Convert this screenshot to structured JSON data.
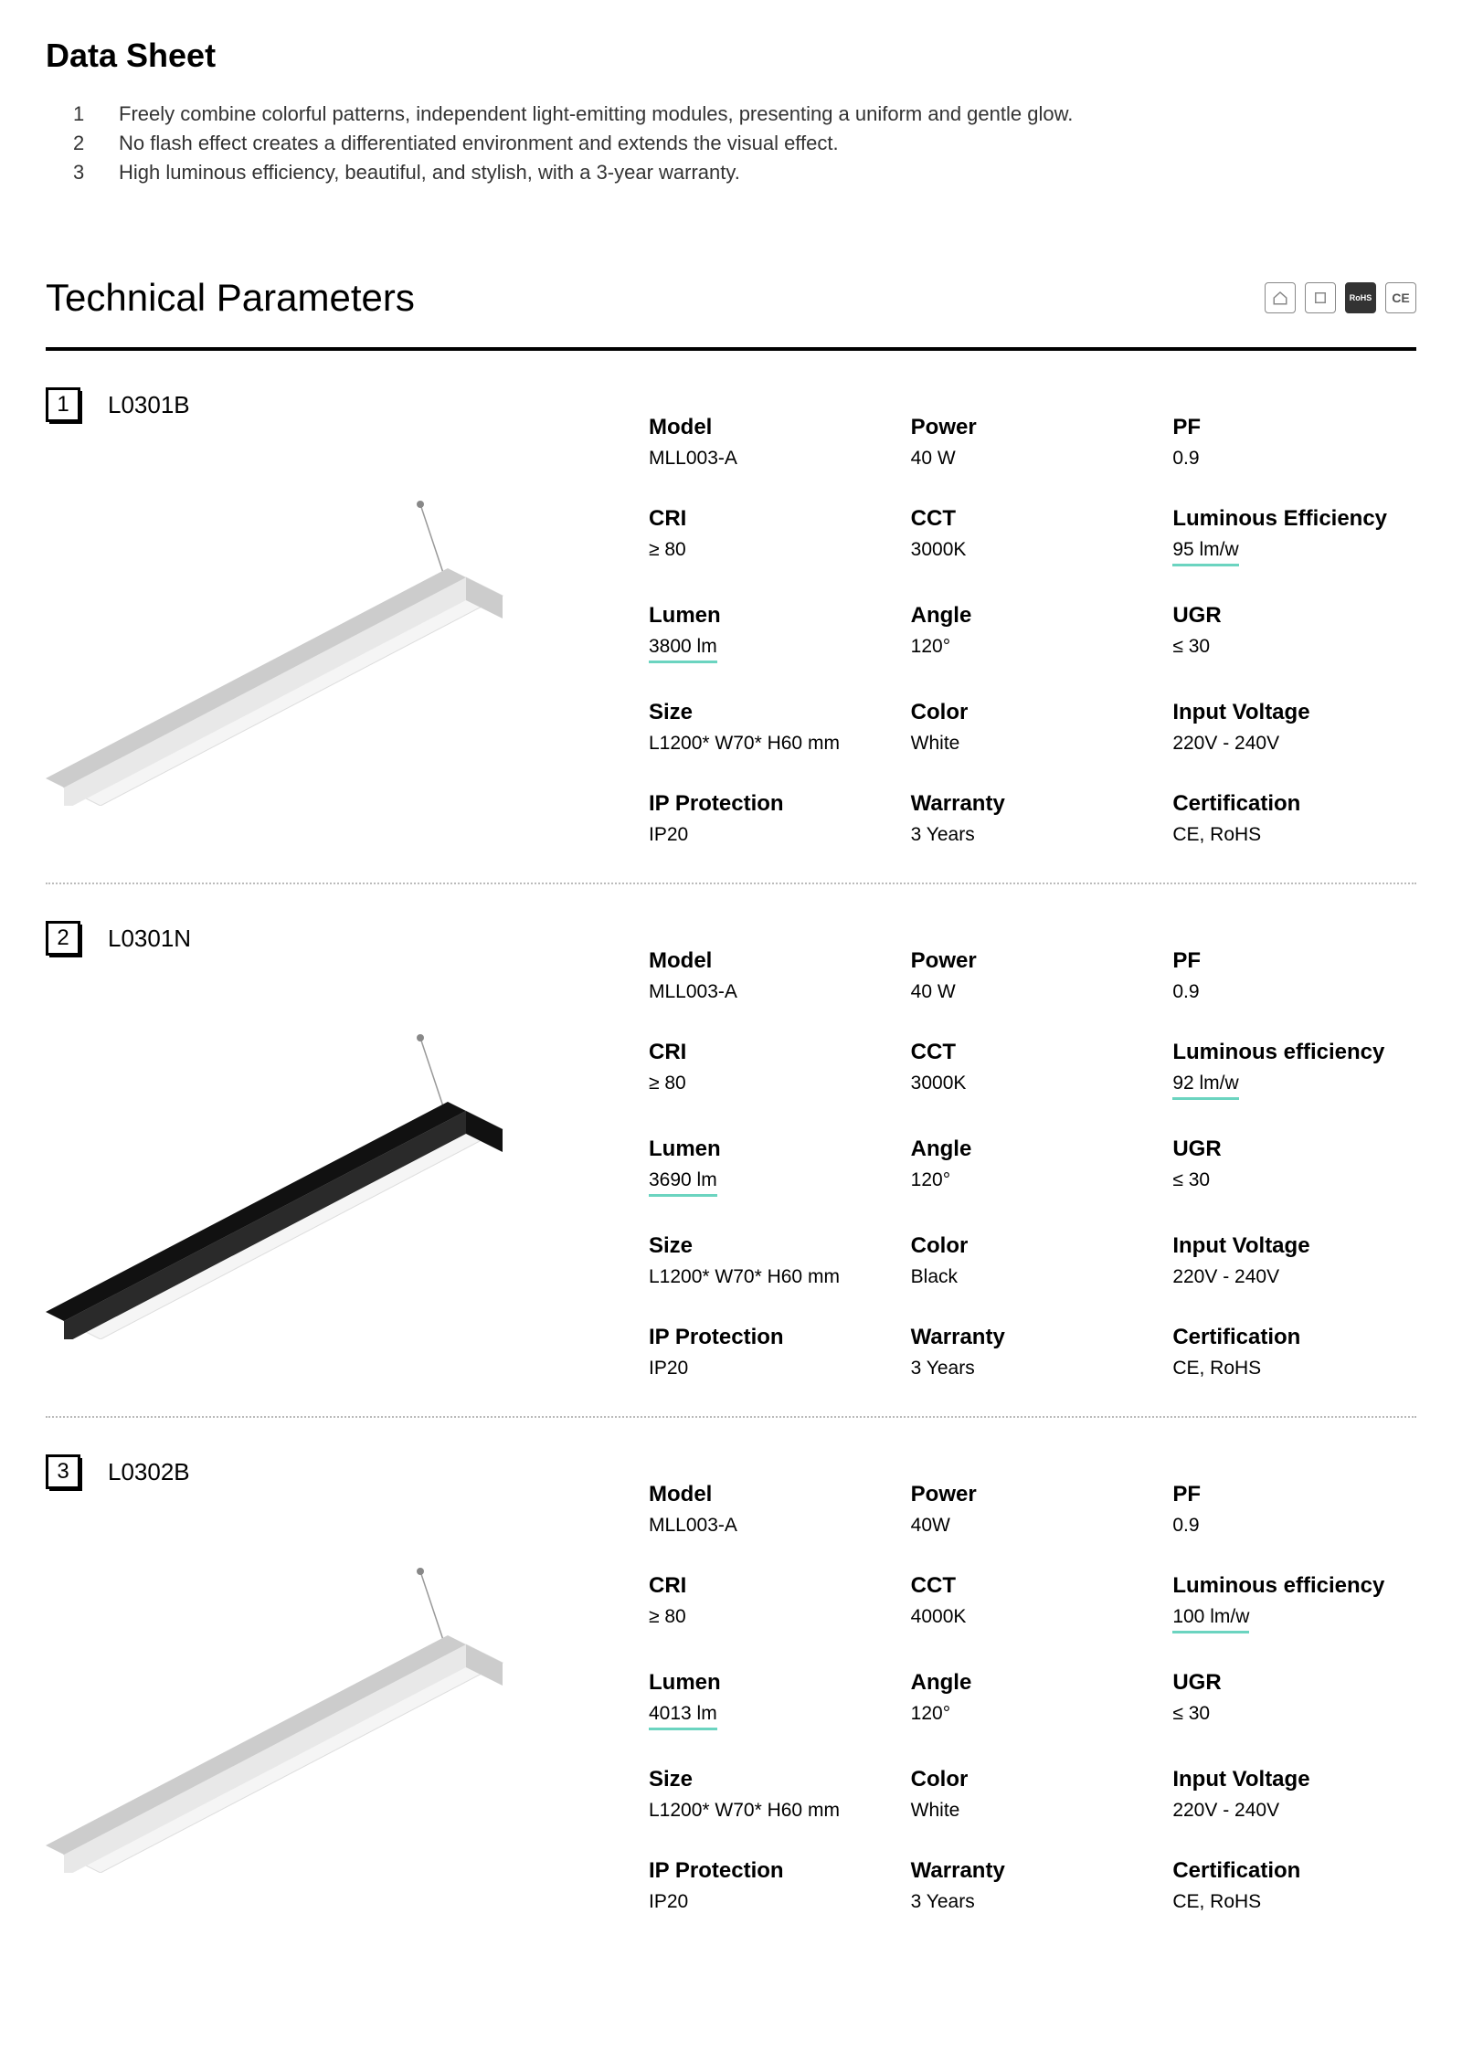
{
  "page_title": "Data Sheet",
  "features": [
    {
      "num": "1",
      "text": "Freely combine colorful patterns, independent light-emitting modules, presenting a uniform and gentle glow."
    },
    {
      "num": "2",
      "text": "No flash effect creates a differentiated environment and extends the visual effect."
    },
    {
      "num": "3",
      "text": "High luminous efficiency, beautiful, and stylish, with a 3-year warranty."
    }
  ],
  "section_title": "Technical Parameters",
  "cert_icons": [
    "home",
    "square",
    "RoHS",
    "CE"
  ],
  "underline_color": "#6bd4c0",
  "products": [
    {
      "number": "1",
      "code": "L0301B",
      "image_color": "white",
      "specs": [
        {
          "label": "Model",
          "value": "MLL003-A",
          "underlined": false
        },
        {
          "label": "Power",
          "value": "40 W",
          "underlined": false
        },
        {
          "label": "PF",
          "value": "0.9",
          "underlined": false
        },
        {
          "label": "CRI",
          "value": "≥ 80",
          "underlined": false
        },
        {
          "label": "CCT",
          "value": "3000K",
          "underlined": false
        },
        {
          "label": "Luminous Efficiency",
          "value": "95 lm/w",
          "underlined": true
        },
        {
          "label": "Lumen",
          "value": "3800 lm",
          "underlined": true
        },
        {
          "label": "Angle",
          "value": "120°",
          "underlined": false
        },
        {
          "label": "UGR",
          "value": "≤ 30",
          "underlined": false
        },
        {
          "label": "Size",
          "value": "L1200* W70* H60 mm",
          "underlined": false
        },
        {
          "label": "Color",
          "value": "White",
          "underlined": false
        },
        {
          "label": "Input Voltage",
          "value": "220V - 240V",
          "underlined": false
        },
        {
          "label": "IP Protection",
          "value": "IP20",
          "underlined": false
        },
        {
          "label": "Warranty",
          "value": "3  Years",
          "underlined": false
        },
        {
          "label": "Certification",
          "value": "CE, RoHS",
          "underlined": false
        }
      ]
    },
    {
      "number": "2",
      "code": "L0301N",
      "image_color": "black",
      "specs": [
        {
          "label": "Model",
          "value": "MLL003-A",
          "underlined": false
        },
        {
          "label": "Power",
          "value": "40 W",
          "underlined": false
        },
        {
          "label": "PF",
          "value": "0.9",
          "underlined": false
        },
        {
          "label": "CRI",
          "value": "≥ 80",
          "underlined": false
        },
        {
          "label": "CCT",
          "value": "3000K",
          "underlined": false
        },
        {
          "label": "Luminous efficiency",
          "value": "92 lm/w",
          "underlined": true
        },
        {
          "label": "Lumen",
          "value": "3690 lm",
          "underlined": true
        },
        {
          "label": "Angle",
          "value": "120°",
          "underlined": false
        },
        {
          "label": "UGR",
          "value": "≤ 30",
          "underlined": false
        },
        {
          "label": "Size",
          "value": "L1200* W70* H60 mm",
          "underlined": false
        },
        {
          "label": "Color",
          "value": "Black",
          "underlined": false
        },
        {
          "label": "Input Voltage",
          "value": "220V - 240V",
          "underlined": false
        },
        {
          "label": "IP Protection",
          "value": "IP20",
          "underlined": false
        },
        {
          "label": "Warranty",
          "value": "3  Years",
          "underlined": false
        },
        {
          "label": "Certification",
          "value": "CE, RoHS",
          "underlined": false
        }
      ]
    },
    {
      "number": "3",
      "code": "L0302B",
      "image_color": "white",
      "specs": [
        {
          "label": "Model",
          "value": "MLL003-A",
          "underlined": false
        },
        {
          "label": "Power",
          "value": "40W",
          "underlined": false
        },
        {
          "label": "PF",
          "value": "0.9",
          "underlined": false
        },
        {
          "label": "CRI",
          "value": "≥ 80",
          "underlined": false
        },
        {
          "label": "CCT",
          "value": "4000K",
          "underlined": false
        },
        {
          "label": "Luminous efficiency",
          "value": "100 lm/w",
          "underlined": true
        },
        {
          "label": "Lumen",
          "value": "4013 lm",
          "underlined": true
        },
        {
          "label": "Angle",
          "value": "120°",
          "underlined": false
        },
        {
          "label": "UGR",
          "value": "≤ 30",
          "underlined": false
        },
        {
          "label": "Size",
          "value": "L1200* W70* H60 mm",
          "underlined": false
        },
        {
          "label": "Color",
          "value": "White",
          "underlined": false
        },
        {
          "label": "Input Voltage",
          "value": "220V - 240V",
          "underlined": false
        },
        {
          "label": "IP Protection",
          "value": "IP20",
          "underlined": false
        },
        {
          "label": "Warranty",
          "value": "3  Years",
          "underlined": false
        },
        {
          "label": "Certification",
          "value": "CE, RoHS",
          "underlined": false
        }
      ]
    }
  ]
}
